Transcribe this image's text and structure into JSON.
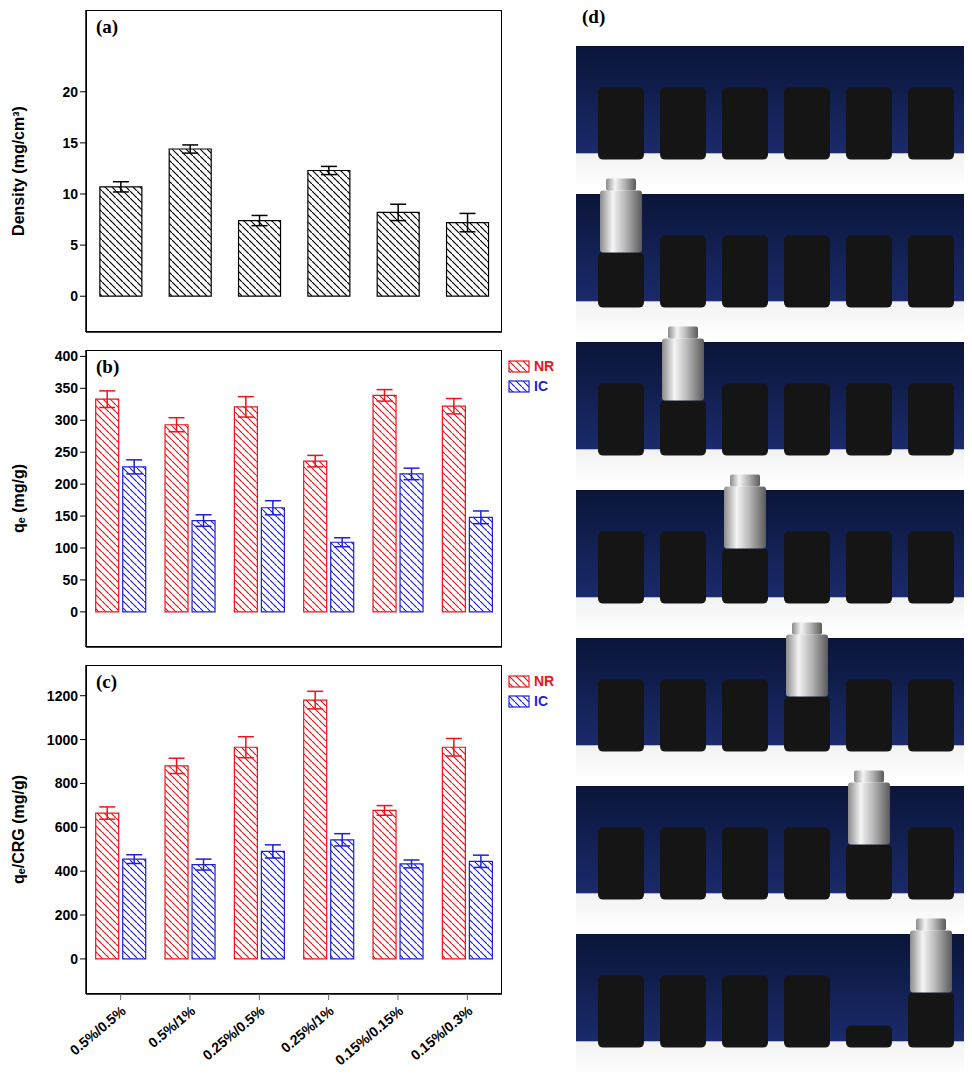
{
  "chart_data": [
    {
      "type": "bar",
      "title": "(a)",
      "y_label": "Density (mg/cm³)",
      "categories": [
        "0.5%/0.5%",
        "0.5%/1%",
        "0.25%/0.5%",
        "0.25%/1%",
        "0.15%/0.15%",
        "0.15%/0.3%"
      ],
      "values": [
        10.7,
        14.4,
        7.4,
        12.3,
        8.2,
        7.2
      ],
      "errors": [
        0.5,
        0.4,
        0.5,
        0.4,
        0.8,
        0.9
      ],
      "color": "#000000",
      "ylim": [
        -3.5,
        28
      ],
      "yticks": [
        0,
        5,
        10,
        15,
        20
      ],
      "tick_labels": "y",
      "grid": false
    },
    {
      "type": "bar",
      "title": "(b)",
      "y_label": "qₑ (mg/g)",
      "categories": [
        "0.5%/0.5%",
        "0.5%/1%",
        "0.25%/0.5%",
        "0.25%/1%",
        "0.15%/0.15%",
        "0.15%/0.3%"
      ],
      "series": [
        {
          "name": "NR",
          "color": "#e8151b",
          "values": [
            333,
            293,
            321,
            236,
            339,
            322
          ],
          "errors": [
            13,
            11,
            16,
            9,
            9,
            12
          ]
        },
        {
          "name": "IC",
          "color": "#1f1fd6",
          "values": [
            227,
            143,
            163,
            109,
            216,
            148
          ],
          "errors": [
            11,
            9,
            11,
            7,
            9,
            10
          ]
        }
      ],
      "ylim": [
        -55,
        410
      ],
      "yticks": [
        0,
        50,
        100,
        150,
        200,
        250,
        300,
        350,
        400
      ],
      "tick_labels": "y",
      "legend": "right",
      "grid": false
    },
    {
      "type": "bar",
      "title": "(c)",
      "y_label": "qₑ/CRG (mg/g)",
      "categories": [
        "0.5%/0.5%",
        "0.5%/1%",
        "0.25%/0.5%",
        "0.25%/1%",
        "0.15%/0.15%",
        "0.15%/0.3%"
      ],
      "series": [
        {
          "name": "NR",
          "color": "#e8151b",
          "values": [
            665,
            880,
            965,
            1180,
            677,
            965
          ],
          "errors": [
            28,
            35,
            48,
            40,
            22,
            40
          ]
        },
        {
          "name": "IC",
          "color": "#1f1fd6",
          "values": [
            455,
            430,
            490,
            543,
            433,
            445
          ],
          "errors": [
            20,
            25,
            30,
            28,
            18,
            28
          ]
        }
      ],
      "ylim": [
        -160,
        1340
      ],
      "yticks": [
        0,
        200,
        400,
        600,
        800,
        1000,
        1200
      ],
      "legend": "right",
      "grid": false
    }
  ],
  "photo_panel": {
    "label": "(d)"
  }
}
